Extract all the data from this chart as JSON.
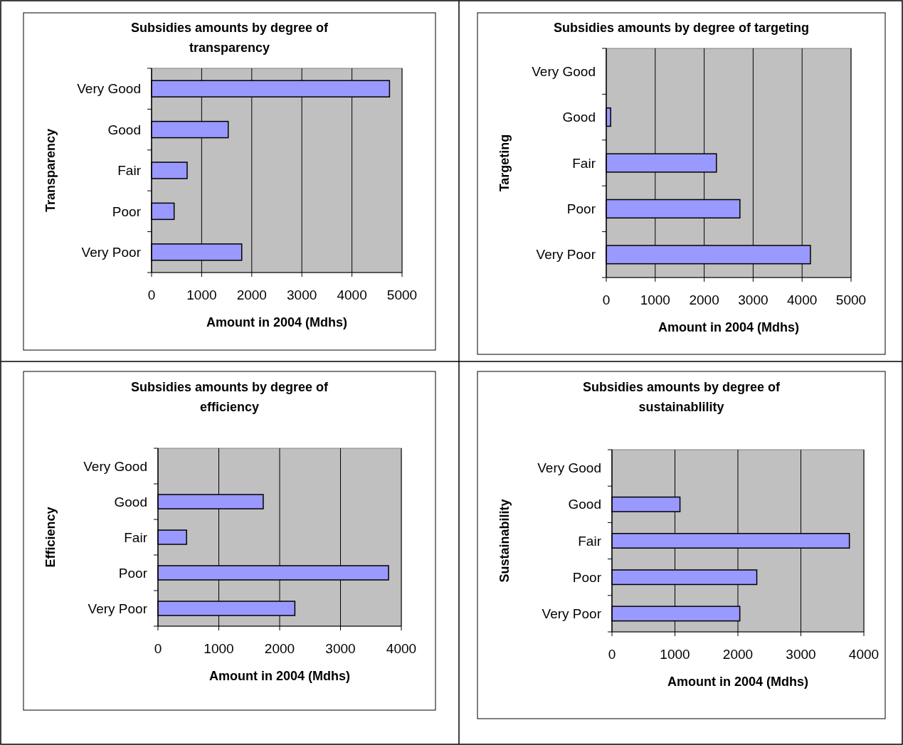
{
  "chart_data": [
    {
      "type": "bar",
      "orientation": "horizontal",
      "title": "Subsidies amounts by degree of transparency",
      "xlabel": "Amount in 2004 (Mdhs)",
      "ylabel": "Transparency",
      "categories": [
        "Very Good",
        "Good",
        "Fair",
        "Poor",
        "Very Poor"
      ],
      "values": [
        4750,
        1530,
        710,
        450,
        1800
      ],
      "color": "#9999ff",
      "xlim": [
        0,
        5000
      ],
      "xticks": [
        0,
        1000,
        2000,
        3000,
        4000,
        5000
      ],
      "grid": "x"
    },
    {
      "type": "bar",
      "orientation": "horizontal",
      "title": "Subsidies amounts by degree of targeting",
      "xlabel": "Amount in 2004 (Mdhs)",
      "ylabel": "Targeting",
      "categories": [
        "Very Good",
        "Good",
        "Fair",
        "Poor",
        "Very Poor"
      ],
      "values": [
        null,
        90,
        2250,
        2730,
        4170
      ],
      "color": "#9999ff",
      "xlim": [
        0,
        5000
      ],
      "xticks": [
        0,
        1000,
        2000,
        3000,
        4000,
        5000
      ],
      "grid": "x"
    },
    {
      "type": "bar",
      "orientation": "horizontal",
      "title": "Subsidies amounts by degree of efficiency",
      "xlabel": "Amount in 2004 (Mdhs)",
      "ylabel": "Efficiency",
      "categories": [
        "Very Good",
        "Good",
        "Fair",
        "Poor",
        "Very Poor"
      ],
      "values": [
        null,
        1730,
        470,
        3790,
        2250
      ],
      "color": "#9999ff",
      "xlim": [
        0,
        4000
      ],
      "xticks": [
        0,
        1000,
        2000,
        3000,
        4000
      ],
      "grid": "x"
    },
    {
      "type": "bar",
      "orientation": "horizontal",
      "title": "Subsidies amounts by degree of sustainablility",
      "xlabel": "Amount in 2004 (Mdhs)",
      "ylabel": "Sustainability",
      "categories": [
        "Very Good",
        "Good",
        "Fair",
        "Poor",
        "Very Poor"
      ],
      "values": [
        null,
        1080,
        3770,
        2300,
        2030
      ],
      "color": "#9999ff",
      "xlim": [
        0,
        4000
      ],
      "xticks": [
        0,
        1000,
        2000,
        3000,
        4000
      ],
      "grid": "x"
    }
  ]
}
